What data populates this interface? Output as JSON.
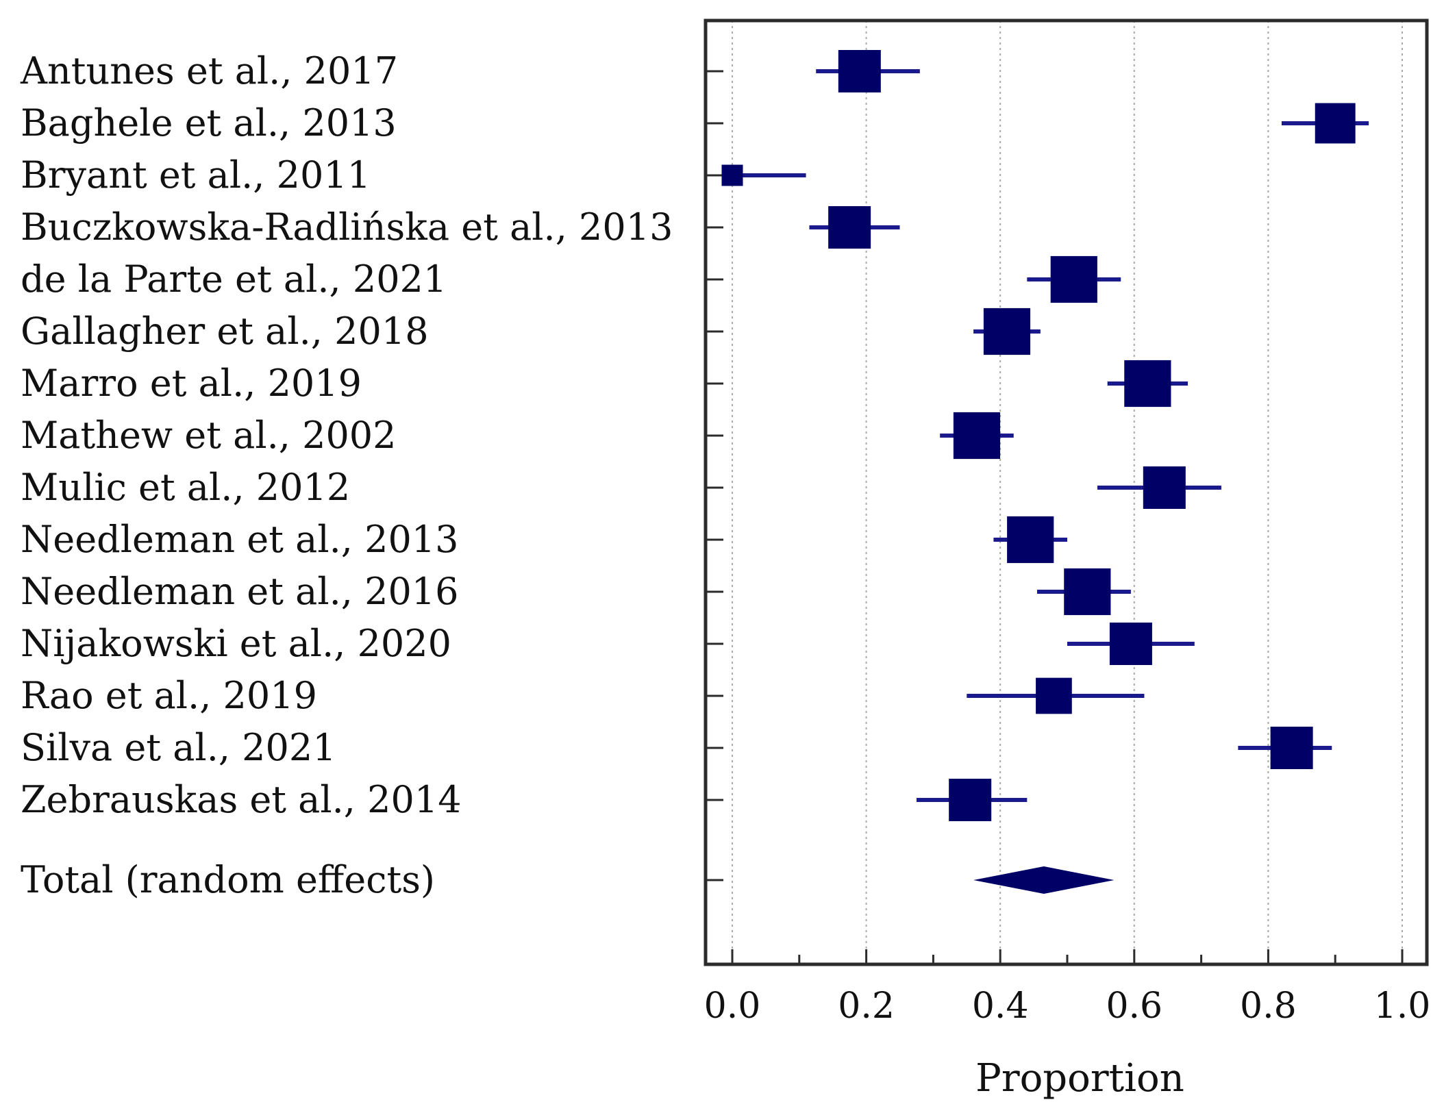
{
  "chart_data": {
    "type": "forest",
    "title": "",
    "xlabel": "Proportion",
    "ylabel": "",
    "xlim": [
      -0.04,
      1.04
    ],
    "x_ticks": [
      "0.0",
      "0.2",
      "0.4",
      "0.6",
      "0.8",
      "1.0"
    ],
    "x_tick_values": [
      0,
      0.2,
      0.4,
      0.6,
      0.8,
      1.0
    ],
    "minor_ticks": [
      0.1,
      0.3,
      0.5,
      0.7,
      0.9
    ],
    "grid": true,
    "colors": {
      "marker": "#000066",
      "ci": "#1a1a8c",
      "frame": "#2b2b2b"
    },
    "studies": [
      {
        "label": "Antunes et al., 2017",
        "estimate": 0.19,
        "lower": 0.125,
        "upper": 0.28,
        "weight": 1.0
      },
      {
        "label": "Baghele et al., 2013",
        "estimate": 0.9,
        "lower": 0.82,
        "upper": 0.95,
        "weight": 0.95
      },
      {
        "label": "Bryant et al., 2011",
        "estimate": 0.0,
        "lower": 0.0,
        "upper": 0.11,
        "weight": 0.5
      },
      {
        "label": "Buczkowska-Radlińska et al., 2013",
        "estimate": 0.175,
        "lower": 0.115,
        "upper": 0.25,
        "weight": 1.0
      },
      {
        "label": "de la Parte et al., 2021",
        "estimate": 0.51,
        "lower": 0.44,
        "upper": 0.58,
        "weight": 1.1
      },
      {
        "label": "Gallagher et al., 2018",
        "estimate": 0.41,
        "lower": 0.36,
        "upper": 0.46,
        "weight": 1.1
      },
      {
        "label": "Marro et al., 2019",
        "estimate": 0.62,
        "lower": 0.56,
        "upper": 0.68,
        "weight": 1.1
      },
      {
        "label": "Mathew et al., 2002",
        "estimate": 0.365,
        "lower": 0.31,
        "upper": 0.42,
        "weight": 1.1
      },
      {
        "label": "Mulic et al., 2012",
        "estimate": 0.645,
        "lower": 0.545,
        "upper": 0.73,
        "weight": 1.0
      },
      {
        "label": "Needleman et al., 2013",
        "estimate": 0.445,
        "lower": 0.39,
        "upper": 0.5,
        "weight": 1.1
      },
      {
        "label": "Needleman et al., 2016",
        "estimate": 0.53,
        "lower": 0.455,
        "upper": 0.595,
        "weight": 1.1
      },
      {
        "label": "Nijakowski et al., 2020",
        "estimate": 0.595,
        "lower": 0.5,
        "upper": 0.69,
        "weight": 1.0
      },
      {
        "label": "Rao et al., 2019",
        "estimate": 0.48,
        "lower": 0.35,
        "upper": 0.615,
        "weight": 0.85
      },
      {
        "label": "Silva et al., 2021",
        "estimate": 0.835,
        "lower": 0.755,
        "upper": 0.895,
        "weight": 1.0
      },
      {
        "label": "Zebrauskas et al., 2014",
        "estimate": 0.355,
        "lower": 0.275,
        "upper": 0.44,
        "weight": 1.0
      }
    ],
    "total": {
      "label": "Total (random effects)",
      "estimate": 0.465,
      "lower": 0.36,
      "upper": 0.57
    }
  }
}
